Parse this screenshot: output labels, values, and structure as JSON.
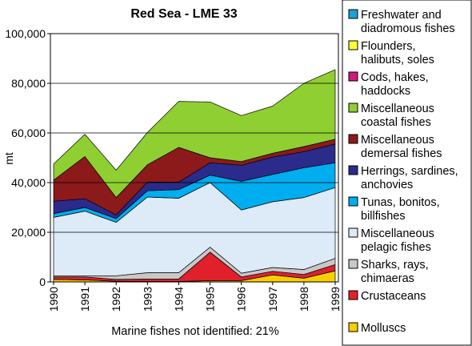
{
  "chart_data": {
    "type": "area",
    "stacked": true,
    "title": "Red Sea - LME 33",
    "ylabel": "mt",
    "xlabel": "",
    "note": "Marine fishes not identified: 21%",
    "ylim": [
      0,
      100000
    ],
    "yticks": [
      "0",
      "20,000",
      "40,000",
      "60,000",
      "80,000",
      "100,000"
    ],
    "x": [
      "1990",
      "1991",
      "1992",
      "1993",
      "1994",
      "1995",
      "1996",
      "1997",
      "1998",
      "1999"
    ],
    "legend_position": "right",
    "series": [
      {
        "name": "Molluscs",
        "color": "#F7CE00",
        "values": [
          1000,
          800,
          300,
          200,
          200,
          500,
          500,
          2800,
          1500,
          4500
        ]
      },
      {
        "name": "Crustaceans",
        "color": "#E0202B",
        "values": [
          1000,
          1200,
          700,
          1000,
          1000,
          11500,
          1500,
          1500,
          1500,
          2500
        ]
      },
      {
        "name": "Sharks, rays, chimaeras",
        "color": "#C8C8C8",
        "values": [
          500,
          500,
          1500,
          2500,
          2500,
          2000,
          1500,
          1500,
          2000,
          2500
        ]
      },
      {
        "name": "Miscellaneous pelagic fishes",
        "color": "#DCEBF7",
        "values": [
          23500,
          26000,
          21500,
          30500,
          30000,
          26000,
          25500,
          26500,
          29000,
          28500
        ]
      },
      {
        "name": "Tunas, bonitos, billfishes",
        "color": "#00ADEF",
        "values": [
          1500,
          1500,
          1500,
          2500,
          3500,
          3000,
          11500,
          11000,
          12000,
          10000
        ]
      },
      {
        "name": "Herrings, sardines, anchovies",
        "color": "#2B2B8C",
        "values": [
          5000,
          3500,
          1500,
          3500,
          3000,
          5000,
          6500,
          7000,
          6500,
          7500
        ]
      },
      {
        "name": "Miscellaneous demersal fishes",
        "color": "#8C1A1A",
        "values": [
          8500,
          17000,
          7000,
          7000,
          14000,
          2000,
          1500,
          1500,
          2000,
          2000
        ]
      },
      {
        "name": "Miscellaneous coastal fishes",
        "color": "#8FCF32",
        "values": [
          6500,
          9000,
          11000,
          13000,
          18500,
          22500,
          18500,
          19000,
          25500,
          28000
        ]
      },
      {
        "name": "Cods, hakes, haddocks",
        "color": "#D4177F",
        "values": [
          0,
          0,
          0,
          0,
          0,
          0,
          0,
          0,
          0,
          0
        ]
      },
      {
        "name": "Flounders, halibuts, soles",
        "color": "#FFFF33",
        "values": [
          0,
          0,
          0,
          0,
          0,
          0,
          0,
          0,
          0,
          0
        ]
      },
      {
        "name": "Freshwater and diadromous fishes",
        "color": "#1BA0D8",
        "values": [
          0,
          0,
          0,
          0,
          0,
          0,
          0,
          0,
          0,
          0
        ]
      }
    ],
    "legend": [
      {
        "lines": [
          "Freshwater and",
          "diadromous fishes"
        ],
        "color": "#1BA0D8"
      },
      {
        "lines": [
          "Flounders,",
          "halibuts, soles"
        ],
        "color": "#FFFF33"
      },
      {
        "lines": [
          "Cods, hakes,",
          "haddocks"
        ],
        "color": "#D4177F"
      },
      {
        "lines": [
          "Miscellaneous",
          "coastal fishes"
        ],
        "color": "#8FCF32"
      },
      {
        "lines": [
          "Miscellaneous",
          "demersal fishes"
        ],
        "color": "#8C1A1A"
      },
      {
        "lines": [
          "Herrings, sardines,",
          "anchovies"
        ],
        "color": "#2B2B8C"
      },
      {
        "lines": [
          "Tunas, bonitos,",
          "billfishes"
        ],
        "color": "#00ADEF"
      },
      {
        "lines": [
          "Miscellaneous",
          "pelagic fishes"
        ],
        "color": "#DCEBF7"
      },
      {
        "lines": [
          "Sharks, rays,",
          "chimaeras"
        ],
        "color": "#C8C8C8"
      },
      {
        "lines": [
          "Crustaceans"
        ],
        "color": "#E0202B"
      },
      {
        "lines": [
          "Molluscs"
        ],
        "color": "#F7CE00"
      }
    ]
  }
}
